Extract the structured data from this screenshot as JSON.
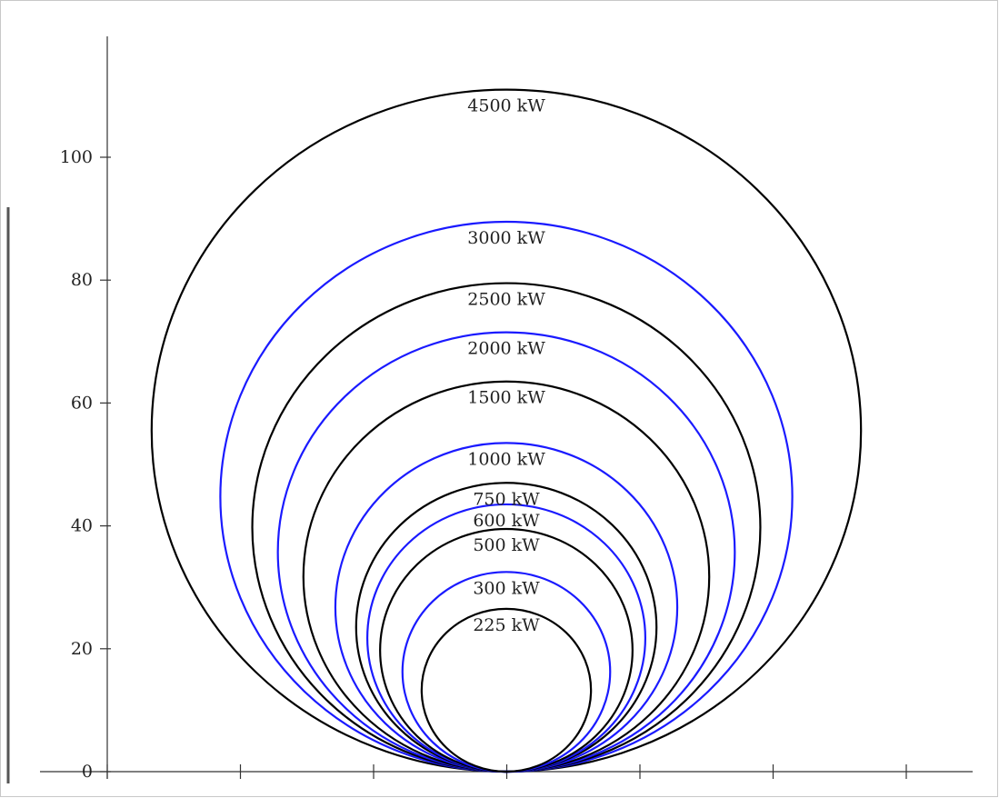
{
  "chart_data": {
    "type": "line",
    "title": "",
    "xlabel": "",
    "ylabel": "",
    "ylim": [
      0,
      118
    ],
    "y_ticks": [
      "0",
      "20",
      "40",
      "60",
      "80",
      "100"
    ],
    "x_tick_count": 7,
    "grid": false,
    "series": [
      {
        "name": "4500 kW",
        "diameter": 111,
        "color": "#000000"
      },
      {
        "name": "3000 kW",
        "diameter": 89.5,
        "color": "#1a1aff"
      },
      {
        "name": "2500 kW",
        "diameter": 79.5,
        "color": "#000000"
      },
      {
        "name": "2000 kW",
        "diameter": 71.5,
        "color": "#1a1aff"
      },
      {
        "name": "1500 kW",
        "diameter": 63.5,
        "color": "#000000"
      },
      {
        "name": "1000 kW",
        "diameter": 53.5,
        "color": "#1a1aff"
      },
      {
        "name": "750 kW",
        "diameter": 47,
        "color": "#000000"
      },
      {
        "name": "600 kW",
        "diameter": 43.5,
        "color": "#1a1aff"
      },
      {
        "name": "500 kW",
        "diameter": 39.5,
        "color": "#000000"
      },
      {
        "name": "300 kW",
        "diameter": 32.5,
        "color": "#1a1aff"
      },
      {
        "name": "225 kW",
        "diameter": 26.5,
        "color": "#000000"
      }
    ]
  }
}
